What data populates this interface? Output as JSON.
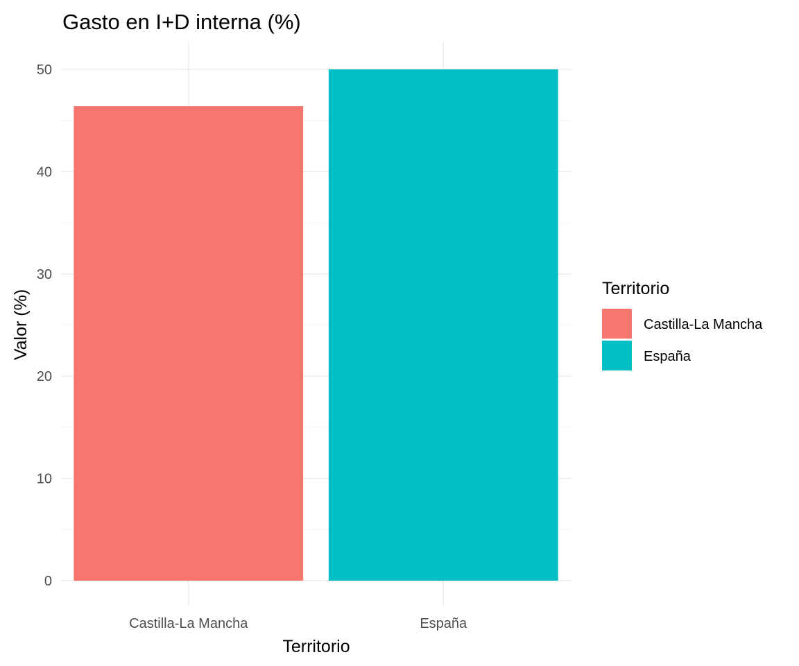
{
  "chart_data": {
    "type": "bar",
    "title": "Gasto en I+D interna (%)",
    "xlabel": "Territorio",
    "ylabel": "Valor (%)",
    "categories": [
      "Castilla-La Mancha",
      "España"
    ],
    "values": [
      46.4,
      50.0
    ],
    "colors": [
      "#F8766D",
      "#00BFC4"
    ],
    "ylim": [
      0,
      52.5
    ],
    "yticks": [
      "0",
      "10",
      "20",
      "30",
      "40",
      "50"
    ],
    "grid": true,
    "legend": {
      "title": "Territorio",
      "placement": "right",
      "items": [
        "Castilla-La Mancha",
        "España"
      ]
    }
  }
}
